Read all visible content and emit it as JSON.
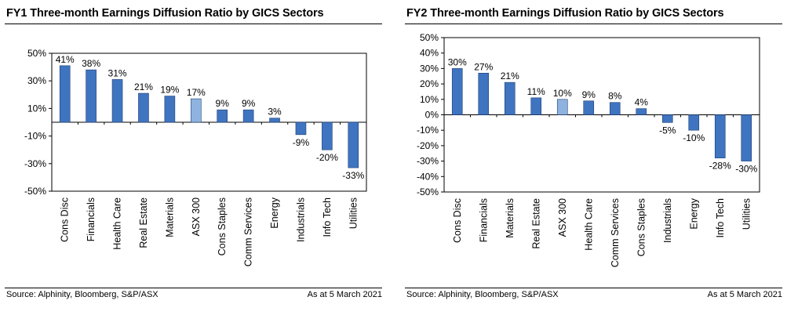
{
  "footer": {
    "source": "Source: Alphinity, Bloomberg, S&P/ASX",
    "date": "As at 5 March 2021"
  },
  "colors": {
    "bar": "#3f74c0",
    "bar_highlight": "#8fb3e0",
    "bar_stroke": "#1f3f73",
    "axis": "#000000"
  },
  "chart_data": [
    {
      "type": "bar",
      "title": "FY1 Three-month Earnings Diffusion Ratio by GICS Sectors",
      "categories": [
        "Cons Disc",
        "Financials",
        "Health Care",
        "Real Estate",
        "Materials",
        "ASX 300",
        "Cons Staples",
        "Comm Services",
        "Energy",
        "Industrials",
        "Info Tech",
        "Utilities"
      ],
      "values": [
        41,
        38,
        31,
        21,
        19,
        17,
        9,
        9,
        3,
        -9,
        -20,
        -33
      ],
      "labels": [
        "41%",
        "38%",
        "31%",
        "21%",
        "19%",
        "17%",
        "9%",
        "9%",
        "3%",
        "-9%",
        "-20%",
        "-33%"
      ],
      "highlight": "ASX 300",
      "ylim": [
        -50,
        50
      ],
      "yticks": [
        50,
        30,
        10,
        -10,
        -30,
        -50
      ],
      "ytick_labels": [
        "50%",
        "30%",
        "10%",
        "-10%",
        "-30%",
        "-50%"
      ],
      "xlabel": "",
      "ylabel": "",
      "grid": false,
      "legend": "none"
    },
    {
      "type": "bar",
      "title": "FY2 Three-month Earnings Diffusion Ratio by GICS Sectors",
      "categories": [
        "Cons Disc",
        "Financials",
        "Materials",
        "Real Estate",
        "ASX 300",
        "Health Care",
        "Comm Services",
        "Cons Staples",
        "Industrials",
        "Energy",
        "Info Tech",
        "Utilities"
      ],
      "values": [
        30,
        27,
        21,
        11,
        10,
        9,
        8,
        4,
        -5,
        -10,
        -28,
        -30
      ],
      "labels": [
        "30%",
        "27%",
        "21%",
        "11%",
        "10%",
        "9%",
        "8%",
        "4%",
        "-5%",
        "-10%",
        "-28%",
        "-30%"
      ],
      "highlight": "ASX 300",
      "ylim": [
        -50,
        50
      ],
      "yticks": [
        50,
        40,
        30,
        20,
        10,
        0,
        -10,
        -20,
        -30,
        -40,
        -50
      ],
      "ytick_labels": [
        "50%",
        "40%",
        "30%",
        "20%",
        "10%",
        "0%",
        "-10%",
        "-20%",
        "-30%",
        "-40%",
        "-50%"
      ],
      "xlabel": "",
      "ylabel": "",
      "grid": false,
      "legend": "none"
    }
  ]
}
